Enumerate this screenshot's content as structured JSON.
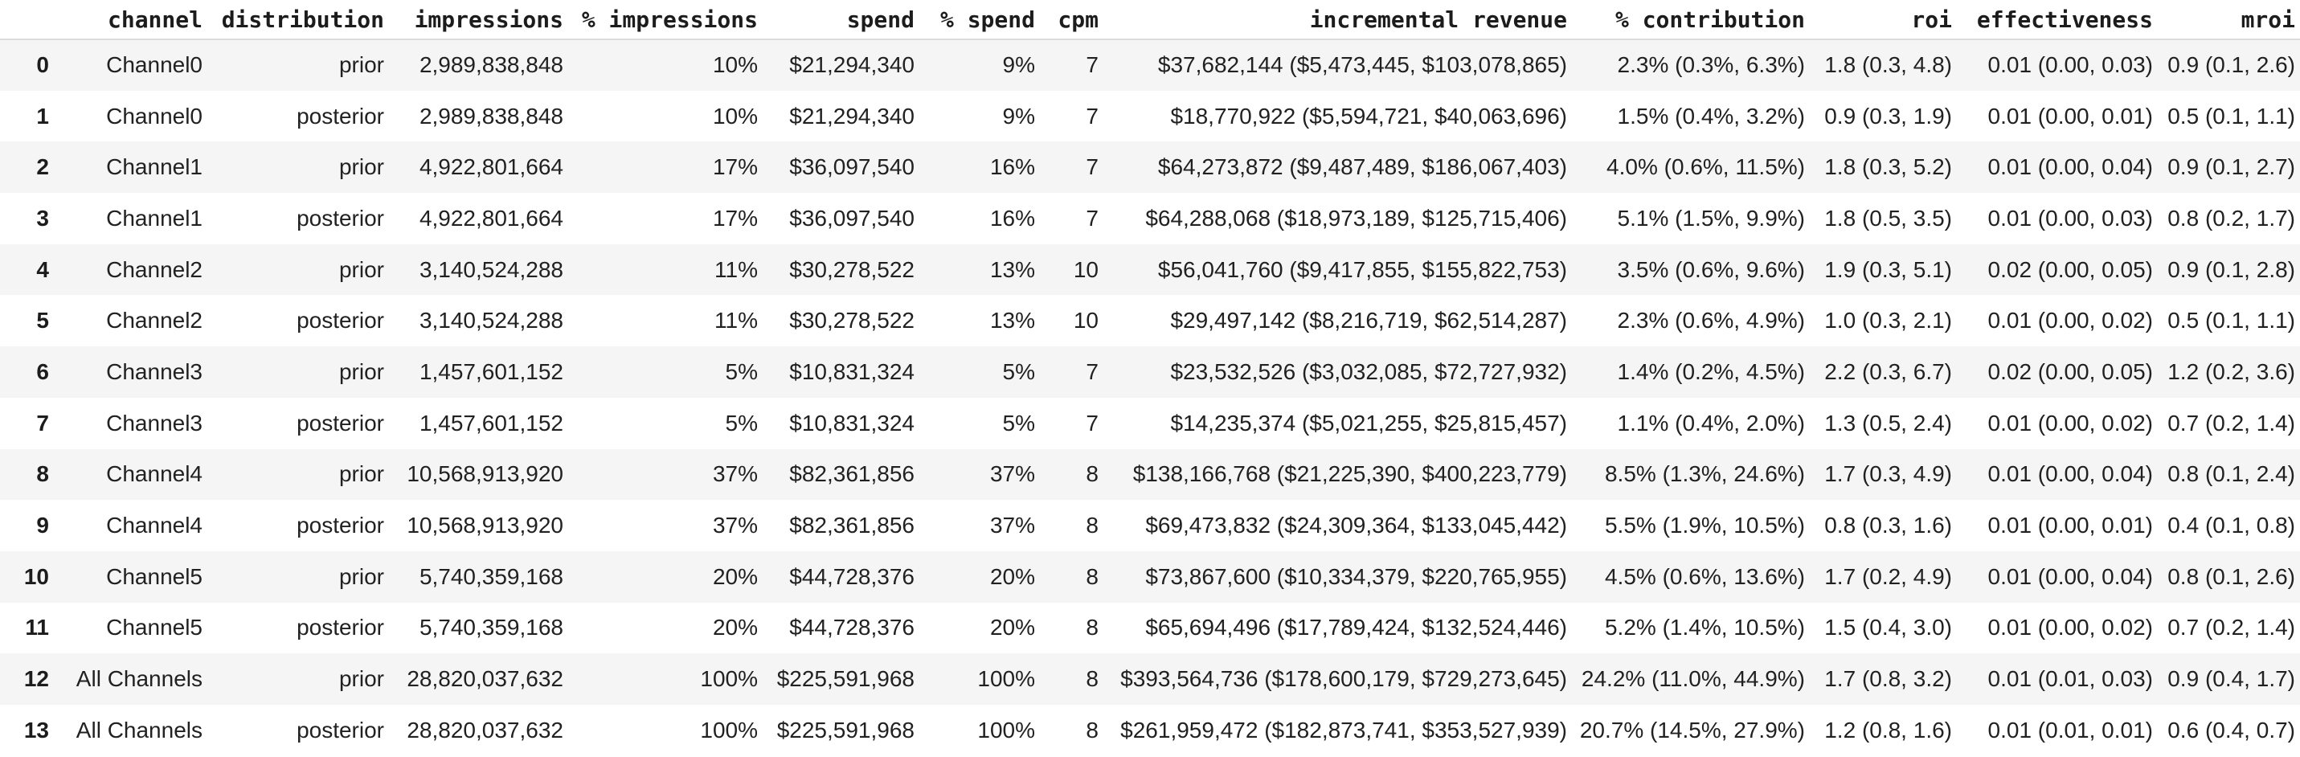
{
  "table": {
    "columns": [
      "channel",
      "distribution",
      "impressions",
      "% impressions",
      "spend",
      "% spend",
      "cpm",
      "incremental revenue",
      "% contribution",
      "roi",
      "effectiveness",
      "mroi"
    ],
    "column_keys": [
      "channel",
      "distribution",
      "impressions",
      "pct-impressions",
      "spend",
      "pct-spend",
      "cpm",
      "incremental-revenue",
      "pct-contribution",
      "roi",
      "effectiveness",
      "mroi"
    ],
    "index_header": "",
    "rows": [
      {
        "index": "0",
        "cells": [
          "Channel0",
          "prior",
          "2,989,838,848",
          "10%",
          "$21,294,340",
          "9%",
          "7",
          "$37,682,144 ($5,473,445, $103,078,865)",
          "2.3% (0.3%, 6.3%)",
          "1.8 (0.3, 4.8)",
          "0.01 (0.00, 0.03)",
          "0.9 (0.1, 2.6)"
        ]
      },
      {
        "index": "1",
        "cells": [
          "Channel0",
          "posterior",
          "2,989,838,848",
          "10%",
          "$21,294,340",
          "9%",
          "7",
          "$18,770,922 ($5,594,721, $40,063,696)",
          "1.5% (0.4%, 3.2%)",
          "0.9 (0.3, 1.9)",
          "0.01 (0.00, 0.01)",
          "0.5 (0.1, 1.1)"
        ]
      },
      {
        "index": "2",
        "cells": [
          "Channel1",
          "prior",
          "4,922,801,664",
          "17%",
          "$36,097,540",
          "16%",
          "7",
          "$64,273,872 ($9,487,489, $186,067,403)",
          "4.0% (0.6%, 11.5%)",
          "1.8 (0.3, 5.2)",
          "0.01 (0.00, 0.04)",
          "0.9 (0.1, 2.7)"
        ]
      },
      {
        "index": "3",
        "cells": [
          "Channel1",
          "posterior",
          "4,922,801,664",
          "17%",
          "$36,097,540",
          "16%",
          "7",
          "$64,288,068 ($18,973,189, $125,715,406)",
          "5.1% (1.5%, 9.9%)",
          "1.8 (0.5, 3.5)",
          "0.01 (0.00, 0.03)",
          "0.8 (0.2, 1.7)"
        ]
      },
      {
        "index": "4",
        "cells": [
          "Channel2",
          "prior",
          "3,140,524,288",
          "11%",
          "$30,278,522",
          "13%",
          "10",
          "$56,041,760 ($9,417,855, $155,822,753)",
          "3.5% (0.6%, 9.6%)",
          "1.9 (0.3, 5.1)",
          "0.02 (0.00, 0.05)",
          "0.9 (0.1, 2.8)"
        ]
      },
      {
        "index": "5",
        "cells": [
          "Channel2",
          "posterior",
          "3,140,524,288",
          "11%",
          "$30,278,522",
          "13%",
          "10",
          "$29,497,142 ($8,216,719, $62,514,287)",
          "2.3% (0.6%, 4.9%)",
          "1.0 (0.3, 2.1)",
          "0.01 (0.00, 0.02)",
          "0.5 (0.1, 1.1)"
        ]
      },
      {
        "index": "6",
        "cells": [
          "Channel3",
          "prior",
          "1,457,601,152",
          "5%",
          "$10,831,324",
          "5%",
          "7",
          "$23,532,526 ($3,032,085, $72,727,932)",
          "1.4% (0.2%, 4.5%)",
          "2.2 (0.3, 6.7)",
          "0.02 (0.00, 0.05)",
          "1.2 (0.2, 3.6)"
        ]
      },
      {
        "index": "7",
        "cells": [
          "Channel3",
          "posterior",
          "1,457,601,152",
          "5%",
          "$10,831,324",
          "5%",
          "7",
          "$14,235,374 ($5,021,255, $25,815,457)",
          "1.1% (0.4%, 2.0%)",
          "1.3 (0.5, 2.4)",
          "0.01 (0.00, 0.02)",
          "0.7 (0.2, 1.4)"
        ]
      },
      {
        "index": "8",
        "cells": [
          "Channel4",
          "prior",
          "10,568,913,920",
          "37%",
          "$82,361,856",
          "37%",
          "8",
          "$138,166,768 ($21,225,390, $400,223,779)",
          "8.5% (1.3%, 24.6%)",
          "1.7 (0.3, 4.9)",
          "0.01 (0.00, 0.04)",
          "0.8 (0.1, 2.4)"
        ]
      },
      {
        "index": "9",
        "cells": [
          "Channel4",
          "posterior",
          "10,568,913,920",
          "37%",
          "$82,361,856",
          "37%",
          "8",
          "$69,473,832 ($24,309,364, $133,045,442)",
          "5.5% (1.9%, 10.5%)",
          "0.8 (0.3, 1.6)",
          "0.01 (0.00, 0.01)",
          "0.4 (0.1, 0.8)"
        ]
      },
      {
        "index": "10",
        "cells": [
          "Channel5",
          "prior",
          "5,740,359,168",
          "20%",
          "$44,728,376",
          "20%",
          "8",
          "$73,867,600 ($10,334,379, $220,765,955)",
          "4.5% (0.6%, 13.6%)",
          "1.7 (0.2, 4.9)",
          "0.01 (0.00, 0.04)",
          "0.8 (0.1, 2.6)"
        ]
      },
      {
        "index": "11",
        "cells": [
          "Channel5",
          "posterior",
          "5,740,359,168",
          "20%",
          "$44,728,376",
          "20%",
          "8",
          "$65,694,496 ($17,789,424, $132,524,446)",
          "5.2% (1.4%, 10.5%)",
          "1.5 (0.4, 3.0)",
          "0.01 (0.00, 0.02)",
          "0.7 (0.2, 1.4)"
        ]
      },
      {
        "index": "12",
        "cells": [
          "All Channels",
          "prior",
          "28,820,037,632",
          "100%",
          "$225,591,968",
          "100%",
          "8",
          "$393,564,736 ($178,600,179, $729,273,645)",
          "24.2% (11.0%, 44.9%)",
          "1.7 (0.8, 3.2)",
          "0.01 (0.01, 0.03)",
          "0.9 (0.4, 1.7)"
        ]
      },
      {
        "index": "13",
        "cells": [
          "All Channels",
          "posterior",
          "28,820,037,632",
          "100%",
          "$225,591,968",
          "100%",
          "8",
          "$261,959,472 ($182,873,741, $353,527,939)",
          "20.7% (14.5%, 27.9%)",
          "1.2 (0.8, 1.6)",
          "0.01 (0.01, 0.01)",
          "0.6 (0.4, 0.7)"
        ]
      }
    ],
    "colors": {
      "row_stripe": "#f5f5f5",
      "header_border": "#dcdcdc",
      "text": "#212121",
      "background": "#ffffff"
    }
  }
}
